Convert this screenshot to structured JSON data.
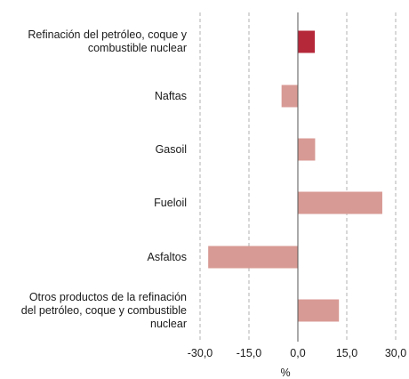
{
  "chart_data": {
    "type": "bar",
    "orientation": "horizontal",
    "categories": [
      "Refinación del petróleo, coque y\ncombustible nuclear",
      "Naftas",
      "Gasoil",
      "Fueloil",
      "Asfaltos",
      "Otros productos de la refinación\ndel petróleo, coque y combustible\nnuclear"
    ],
    "values": [
      5.2,
      -5.0,
      5.3,
      25.9,
      -27.5,
      12.6
    ],
    "bar_colors": [
      "#b5283a",
      "#d89a94",
      "#d89a94",
      "#d89a94",
      "#d89a94",
      "#d89a94"
    ],
    "xlim": [
      -30,
      30
    ],
    "xticks": [
      "-30,0",
      "-15,0",
      "0,0",
      "15,0",
      "30,0"
    ],
    "xtick_values": [
      -30,
      -15,
      0,
      15,
      30
    ],
    "xlabel": "%",
    "grid": "vertical dashed",
    "grid_color": "#b0b0b0",
    "axis_color": "#555555"
  }
}
